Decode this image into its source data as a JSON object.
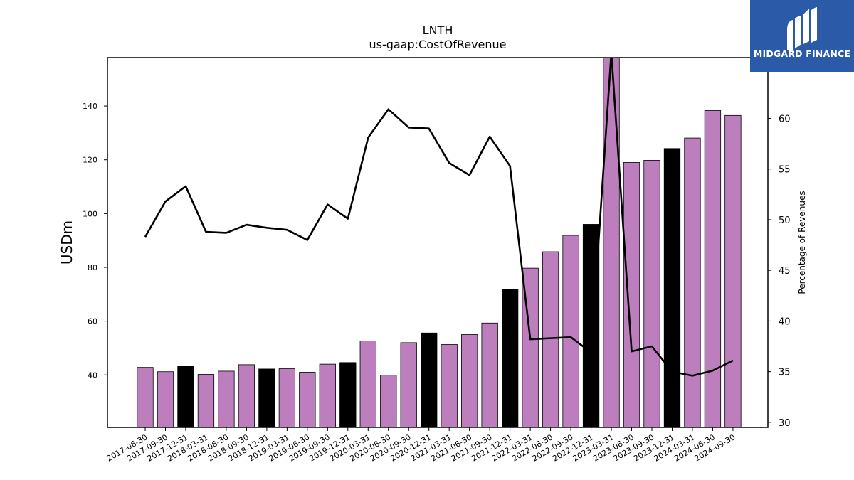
{
  "chart_data": {
    "type": "bar",
    "title": "LNTH",
    "subtitle": "us-gaap:CostOfRevenue",
    "ylabel": "USDm",
    "ylabel_right": "Percentage of Revenues",
    "ylim": [
      20.5,
      158
    ],
    "ylim_right": [
      29.5,
      66
    ],
    "yticks": [
      40,
      60,
      80,
      100,
      120,
      140
    ],
    "yticks_right": [
      30,
      35,
      40,
      45,
      50,
      55,
      60
    ],
    "categories": [
      "2017-06-30",
      "2017-09-30",
      "2017-12-31",
      "2018-03-31",
      "2018-06-30",
      "2018-09-30",
      "2018-12-31",
      "2019-03-31",
      "2019-06-30",
      "2019-09-30",
      "2019-12-31",
      "2020-03-31",
      "2020-06-30",
      "2020-09-30",
      "2020-12-31",
      "2021-03-31",
      "2021-06-30",
      "2021-09-30",
      "2021-12-31",
      "2022-03-31",
      "2022-06-30",
      "2022-09-30",
      "2022-12-31",
      "2023-03-31",
      "2023-06-30",
      "2023-09-30",
      "2023-12-31",
      "2024-03-31",
      "2024-06-30",
      "2024-09-30"
    ],
    "series": [
      {
        "values": [
          42.8,
          41.2,
          43.3,
          40.2,
          41.4,
          43.8,
          42.2,
          42.3,
          41.0,
          44.0,
          44.6,
          52.6,
          39.9,
          52.0,
          55.6,
          51.3,
          55.0,
          59.3,
          71.7,
          79.7,
          85.8,
          91.9,
          96.0,
          160,
          119.0,
          119.8,
          124.2,
          128.1,
          138.3,
          136.5
        ],
        "colors": [
          "#bc7ebc",
          "#bc7ebc",
          "#000000",
          "#bc7ebc",
          "#bc7ebc",
          "#bc7ebc",
          "#000000",
          "#bc7ebc",
          "#bc7ebc",
          "#bc7ebc",
          "#000000",
          "#bc7ebc",
          "#bc7ebc",
          "#bc7ebc",
          "#000000",
          "#bc7ebc",
          "#bc7ebc",
          "#bc7ebc",
          "#000000",
          "#bc7ebc",
          "#bc7ebc",
          "#bc7ebc",
          "#000000",
          "#bc7ebc",
          "#bc7ebc",
          "#bc7ebc",
          "#000000",
          "#bc7ebc",
          "#bc7ebc",
          "#bc7ebc"
        ]
      },
      {
        "type": "line",
        "axis": "right",
        "color": "#000000",
        "values": [
          48.3,
          51.8,
          53.3,
          48.8,
          48.7,
          49.5,
          49.2,
          49.0,
          48.0,
          51.5,
          50.1,
          58.1,
          60.9,
          59.1,
          59.0,
          55.6,
          54.4,
          58.2,
          55.3,
          38.2,
          38.3,
          38.4,
          36.9,
          66.5,
          37.0,
          37.5,
          35.0,
          34.6,
          35.1,
          36.1
        ]
      }
    ],
    "grid": false
  },
  "branding": {
    "logo_text": "MIDGARD FINANCE",
    "logo_color": "#2a5aa8"
  }
}
